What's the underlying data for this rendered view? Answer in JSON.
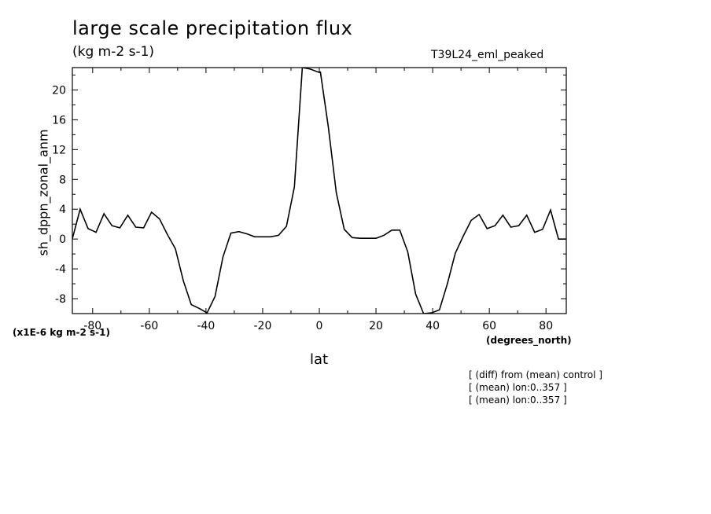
{
  "header": {
    "title": "large scale precipitation flux",
    "units": "(kg m-2 s-1)",
    "run_name": "T39L24_eml_peaked"
  },
  "annotations": [
    "[ (diff) from (mean) control ]",
    "[ (mean) lon:0..357 ]",
    "[ (mean) lon:0..357 ]"
  ],
  "chart_data": {
    "type": "line",
    "title": "large scale precipitation flux",
    "subtitle": "(kg m-2 s-1)",
    "xlabel": "lat",
    "x_units": "(degrees_north)",
    "ylabel": "sh_dppn_zonal_anm",
    "y_scale_note": "(x1E-6 kg m-2 s-1)",
    "xlim": [
      -87.16,
      87.16
    ],
    "ylim": [
      -10,
      23
    ],
    "x_ticks": [
      -80,
      -60,
      -40,
      -20,
      0,
      20,
      40,
      60,
      80
    ],
    "x_tick_labels": [
      "-80",
      "-60",
      "-40",
      "-20",
      "0",
      "20",
      "40",
      "60",
      "80"
    ],
    "y_ticks": [
      -8,
      -4,
      0,
      4,
      8,
      12,
      16,
      20
    ],
    "y_tick_labels": [
      "-8",
      "-4",
      "0",
      "4",
      "8",
      "12",
      "16",
      "20"
    ],
    "grid": false,
    "series": [
      {
        "x": [
          -87.2,
          -84.4,
          -81.6,
          -78.8,
          -76.0,
          -73.2,
          -70.4,
          -67.6,
          -64.8,
          -62.0,
          -59.2,
          -56.4,
          -53.6,
          -50.8,
          -48.0,
          -45.2,
          -42.4,
          -39.6,
          -36.8,
          -34.0,
          -31.2,
          -28.4,
          -25.6,
          -22.8,
          -20.0,
          -17.2,
          -14.4,
          -11.6,
          -8.8,
          -6.0,
          -3.2,
          -0.4,
          0.4,
          3.2,
          6.0,
          8.8,
          11.6,
          14.4,
          17.2,
          20.0,
          22.8,
          25.6,
          28.4,
          31.2,
          34.0,
          36.8,
          39.6,
          42.4,
          45.2,
          48.0,
          50.8,
          53.6,
          56.4,
          59.2,
          62.0,
          64.8,
          67.6,
          70.4,
          73.2,
          76.0,
          78.8,
          81.6,
          84.4,
          87.2
        ],
        "values": [
          0.0,
          4.0,
          1.4,
          0.9,
          3.4,
          1.8,
          1.5,
          3.2,
          1.6,
          1.5,
          3.6,
          2.7,
          0.6,
          -1.3,
          -5.6,
          -8.8,
          -9.3,
          -9.9,
          -7.7,
          -2.4,
          0.8,
          1.0,
          0.7,
          0.3,
          0.3,
          0.3,
          0.5,
          1.7,
          7.0,
          23.0,
          22.8,
          22.4,
          22.4,
          15.0,
          6.2,
          1.3,
          0.2,
          0.1,
          0.1,
          0.1,
          0.5,
          1.2,
          1.2,
          -1.7,
          -7.4,
          -10.0,
          -9.9,
          -9.5,
          -6.0,
          -1.9,
          0.4,
          2.5,
          3.3,
          1.4,
          1.8,
          3.2,
          1.6,
          1.8,
          3.2,
          0.9,
          1.3,
          3.9,
          0.0,
          0.0
        ]
      }
    ],
    "line_color": "#000000"
  }
}
